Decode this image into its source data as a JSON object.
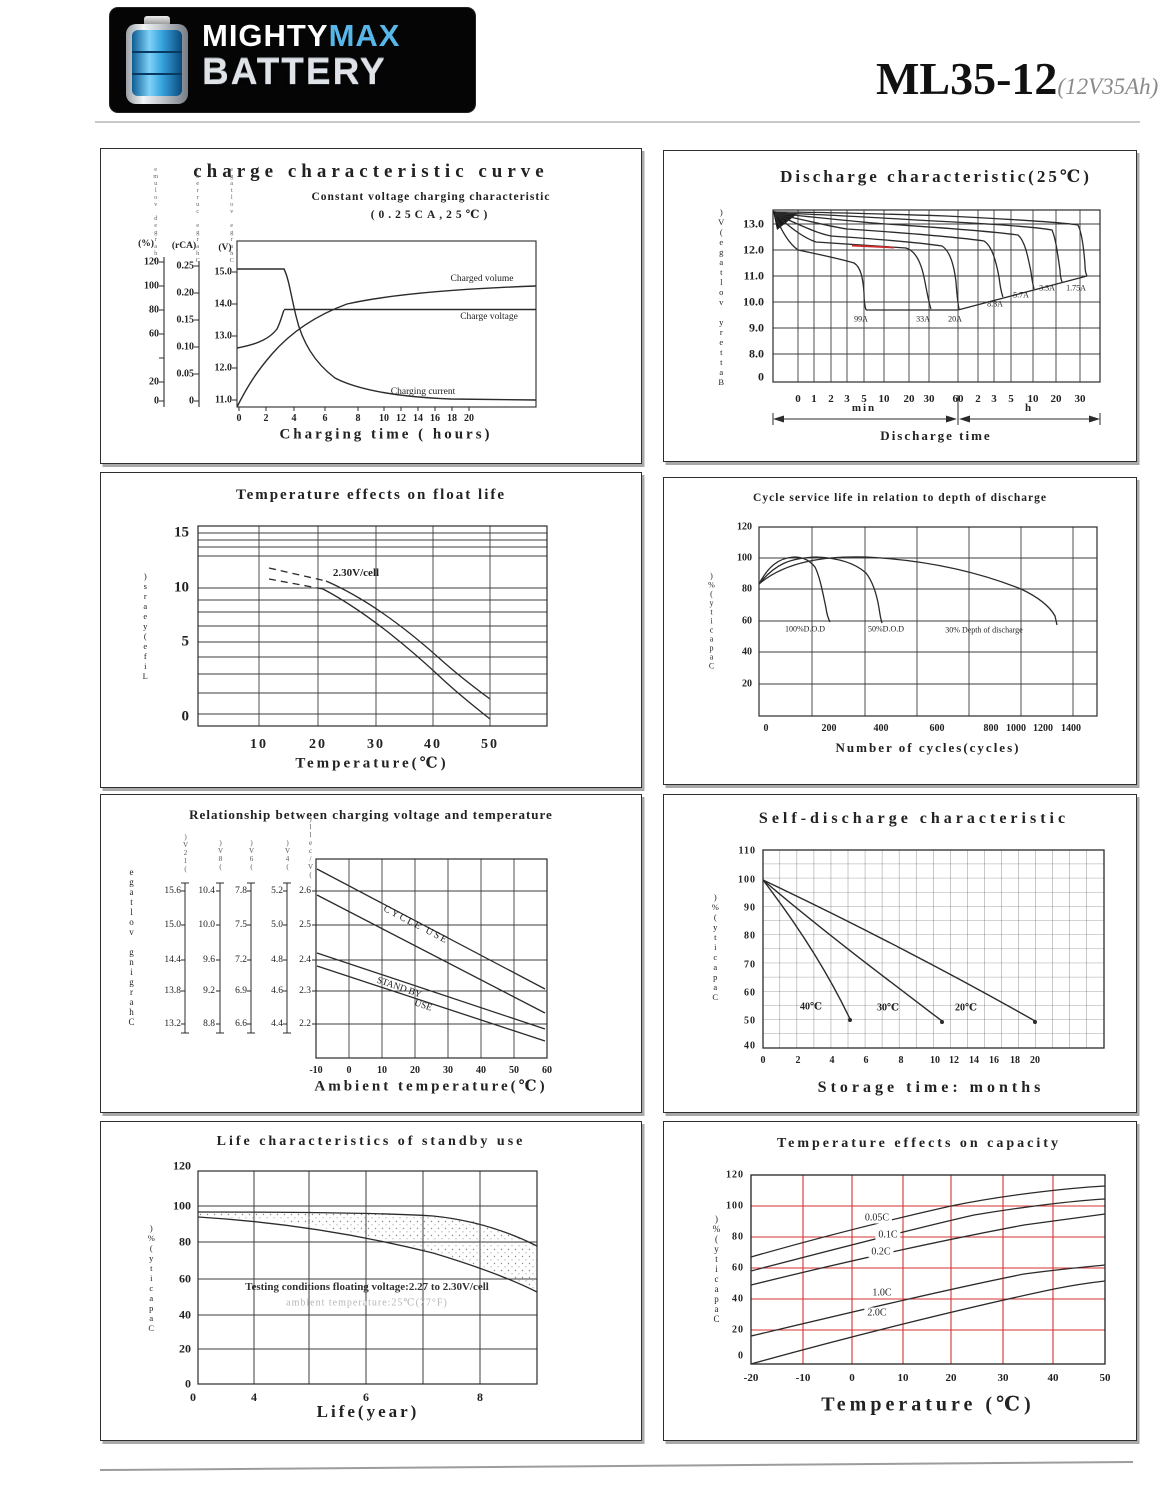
{
  "header": {
    "logo": {
      "line1_white": "MIGHTY",
      "line1_accent": "MAX",
      "line2": "BATTERY",
      "accent_color": "#56b7e8"
    },
    "model": "ML35-12",
    "spec": "(12V35Ah)"
  },
  "colors": {
    "ink": "#2b2b2b",
    "red_grid": "#d63333",
    "red_segment": "#cc2a2a",
    "logo_accent": "#56b7e8"
  },
  "chart_data": [
    {
      "id": "charge-characteristic",
      "type": "line",
      "title": "charge characteristic curve",
      "subtitle": "Constant voltage charging characteristic",
      "subtitle2": "(0.25CA,25℃)",
      "xlabel": "Charging time ( hours)",
      "x_ticks_a": [
        "0",
        "2",
        "4",
        "6",
        "8"
      ],
      "x_ticks_b": [
        "10",
        "12",
        "14",
        "16",
        "18",
        "20"
      ],
      "axes": [
        {
          "caption": "(%)",
          "title": "Charged volume",
          "ticks": [
            "120",
            "100",
            "80",
            "60",
            "",
            "20",
            "0"
          ],
          "range": [
            0,
            140
          ]
        },
        {
          "caption": "(rCA)",
          "title": "Charge current",
          "ticks": [
            "0.25",
            "0.20",
            "0.15",
            "0.10",
            "0.05",
            "0"
          ],
          "range": [
            0,
            0.3
          ]
        },
        {
          "caption": "(V)",
          "title": "Charge voltage",
          "ticks": [
            "15.0",
            "14.0",
            "13.0",
            "12.0",
            "11.0"
          ],
          "range": [
            10.5,
            15.5
          ]
        }
      ],
      "series": [
        {
          "name": "Charged volume",
          "unit": "%",
          "x_hours": [
            0,
            1,
            2,
            4,
            6,
            8,
            12,
            16,
            20,
            24
          ],
          "values": [
            0,
            20,
            42,
            68,
            83,
            92,
            100,
            104,
            106,
            107
          ]
        },
        {
          "name": "Charge voltage",
          "unit": "V",
          "x_hours": [
            0,
            1,
            2,
            3,
            4,
            8,
            16,
            24
          ],
          "values": [
            12.6,
            12.75,
            13.1,
            13.85,
            13.85,
            13.85,
            13.85,
            13.85
          ]
        },
        {
          "name": "Charging current",
          "unit": "CA",
          "x_hours": [
            0,
            2,
            2.8,
            4,
            6,
            8,
            12,
            20,
            24
          ],
          "values": [
            0.25,
            0.25,
            0.25,
            0.13,
            0.07,
            0.045,
            0.025,
            0.012,
            0.01
          ]
        }
      ]
    },
    {
      "id": "discharge-characteristic",
      "type": "line",
      "title": "Discharge  characteristic(25℃)",
      "ylabel": "Battery voltage(V)",
      "xlabel": "Discharge time",
      "unit_min": "min",
      "unit_h": "h",
      "y_ticks": [
        "13.0",
        "12.0",
        "11.0",
        "10.0",
        "9.0",
        "8.0",
        "0"
      ],
      "x_ticks": [
        "0",
        "1",
        "2",
        "3",
        "5",
        "10",
        "20",
        "30",
        "60",
        "2",
        "3",
        "5",
        "10",
        "20",
        "30"
      ],
      "series": [
        {
          "name": "99A",
          "points_min_V": [
            [
              0,
              12.4
            ],
            [
              2,
              12.1
            ],
            [
              4,
              11.6
            ],
            [
              6,
              9.6
            ]
          ]
        },
        {
          "name": "33A",
          "points_min_V": [
            [
              0,
              12.2
            ],
            [
              10,
              12.1
            ],
            [
              20,
              11.8
            ],
            [
              27,
              9.6
            ]
          ]
        },
        {
          "name": "20A",
          "points_min_V": [
            [
              0,
              12.4
            ],
            [
              20,
              12.3
            ],
            [
              40,
              11.4
            ],
            [
              50,
              9.6
            ]
          ]
        },
        {
          "name": "8.3A",
          "points_min_V": [
            [
              0,
              12.6
            ],
            [
              60,
              12.4
            ],
            [
              120,
              11.3
            ],
            [
              150,
              10.3
            ]
          ]
        },
        {
          "name": "5.7A",
          "points_min_V": [
            [
              0,
              12.7
            ],
            [
              120,
              12.4
            ],
            [
              200,
              11.2
            ],
            [
              240,
              10.5
            ]
          ]
        },
        {
          "name": "3.3A",
          "points_min_V": [
            [
              0,
              12.85
            ],
            [
              240,
              12.3
            ],
            [
              400,
              11.2
            ],
            [
              450,
              10.8
            ]
          ]
        },
        {
          "name": "1.75A",
          "points_min_V": [
            [
              0,
              13.0
            ],
            [
              600,
              12.2
            ],
            [
              900,
              11.3
            ],
            [
              960,
              11.0
            ]
          ]
        }
      ]
    },
    {
      "id": "temperature-effects-on-float-life",
      "type": "area",
      "title": "Temperature effects on float life",
      "xlabel": "Temperature(℃)",
      "ylabel": "Life(years)",
      "annotation": "2.30V/cell",
      "x_ticks": [
        "10",
        "20",
        "30",
        "40",
        "50"
      ],
      "y_ticks": [
        "15",
        "10",
        "5",
        "0"
      ],
      "series": [
        {
          "name": "float life upper",
          "x": [
            15,
            20,
            30,
            40,
            50
          ],
          "values": [
            11.8,
            11,
            7,
            3.5,
            1.3
          ]
        },
        {
          "name": "float life lower",
          "x": [
            15,
            20,
            30,
            40,
            50
          ],
          "values": [
            10.8,
            10,
            6,
            2.8,
            0.3
          ]
        }
      ]
    },
    {
      "id": "cycle-service-life",
      "type": "line",
      "title": "Cycle service life in relation to depth of discharge",
      "xlabel": "Number of cycles(cycles)",
      "ylabel": "Capacity(%)",
      "x_ticks": [
        "0",
        "200",
        "400",
        "600",
        "800",
        "1000",
        "1200",
        "1400"
      ],
      "y_ticks": [
        "120",
        "100",
        "80",
        "60",
        "40",
        "20"
      ],
      "series": [
        {
          "name": "100%D.O.D",
          "x": [
            0,
            50,
            100,
            150,
            180
          ],
          "values": [
            97,
            100,
            98,
            80,
            58
          ]
        },
        {
          "name": "50%D.O.D",
          "x": [
            0,
            100,
            200,
            300,
            400
          ],
          "values": [
            97,
            100,
            98,
            85,
            58
          ]
        },
        {
          "name": "30% Depth of discharge",
          "x": [
            0,
            200,
            400,
            600,
            800,
            1000,
            1250
          ],
          "values": [
            97,
            100,
            98,
            95,
            90,
            82,
            58
          ]
        }
      ]
    },
    {
      "id": "charging-voltage-vs-temperature",
      "type": "line",
      "title": "Relationship between charging voltage and temperature",
      "xlabel": "Ambient temperature(℃)",
      "ylabel": "Charging voltage",
      "x_ticks": [
        "-10",
        "0",
        "10",
        "20",
        "30",
        "40",
        "50",
        "60"
      ],
      "scales": [
        {
          "header": "(12V)",
          "ticks": [
            "15.6",
            "15.0",
            "14.4",
            "13.8",
            "13.2"
          ]
        },
        {
          "header": "(8V)",
          "ticks": [
            "10.4",
            "10.0",
            "9.6",
            "9.2",
            "8.8"
          ]
        },
        {
          "header": "(6V)",
          "ticks": [
            "7.8",
            "7.5",
            "7.2",
            "6.9",
            "6.6"
          ]
        },
        {
          "header": "(4V)",
          "ticks": [
            "5.2",
            "5.0",
            "4.8",
            "4.6",
            "4.4"
          ]
        },
        {
          "header": "(V/cell)",
          "ticks": [
            "2.6",
            "2.5",
            "2.4",
            "2.3",
            "2.2"
          ]
        }
      ],
      "labels": {
        "cycle": "CYCLE USE",
        "standby1": "STAND BY",
        "standby2": "USE"
      },
      "bands": [
        {
          "name": "CYCLE USE",
          "upper_Vpc": [
            [
              -10,
              2.58
            ],
            [
              60,
              2.3
            ]
          ],
          "lower_Vpc": [
            [
              -10,
              2.5
            ],
            [
              60,
              2.24
            ]
          ]
        },
        {
          "name": "STAND BY USE",
          "upper_Vpc": [
            [
              -10,
              2.4
            ],
            [
              60,
              2.19
            ]
          ],
          "lower_Vpc": [
            [
              -10,
              2.37
            ],
            [
              60,
              2.16
            ]
          ]
        }
      ]
    },
    {
      "id": "self-discharge",
      "type": "line",
      "title": "Self-discharge characteristic",
      "xlabel": "Storage time: months",
      "ylabel": "Capacity(%)",
      "x_ticks": [
        "0",
        "2",
        "4",
        "6",
        "8",
        "10",
        "12",
        "14",
        "16",
        "18",
        "20"
      ],
      "y_ticks": [
        "110",
        "100",
        "90",
        "80",
        "70",
        "60",
        "50",
        "40"
      ],
      "series": [
        {
          "name": "40℃",
          "x": [
            0,
            5
          ],
          "values": [
            100,
            49
          ]
        },
        {
          "name": "30℃",
          "x": [
            0,
            10.3
          ],
          "values": [
            100,
            49
          ]
        },
        {
          "name": "20℃",
          "x": [
            0,
            20
          ],
          "values": [
            100,
            49
          ]
        }
      ]
    },
    {
      "id": "life-standby-use",
      "type": "area",
      "title": "Life characteristics of standby use",
      "xlabel": "Life(year)",
      "ylabel": "Capacity(%)",
      "note1": "Testing conditions floating voltage:2.27 to 2.30V/cell",
      "note2": "ambient temperature:25℃(77°F)",
      "x_ticks": [
        "0",
        "4",
        "6",
        "8"
      ],
      "y_ticks": [
        "120",
        "100",
        "80",
        "60",
        "40",
        "20",
        "0"
      ],
      "series": [
        {
          "name": "upper",
          "x": [
            0,
            2,
            4,
            6,
            8,
            9
          ],
          "values": [
            96,
            96,
            95,
            93,
            86,
            80
          ]
        },
        {
          "name": "lower",
          "x": [
            0,
            2,
            4,
            6,
            8,
            9
          ],
          "values": [
            93,
            90,
            84,
            74,
            60,
            50
          ]
        }
      ]
    },
    {
      "id": "temperature-effects-on-capacity",
      "type": "line",
      "title": "Temperature effects on  capacity",
      "xlabel": "Temperature (℃)",
      "ylabel": "Capacity(%)",
      "grid_color": "#d63333",
      "x_ticks": [
        "-20",
        "-10",
        "0",
        "10",
        "20",
        "30",
        "40",
        "50"
      ],
      "y_ticks": [
        "120",
        "100",
        "80",
        "60",
        "40",
        "20",
        "0"
      ],
      "series": [
        {
          "name": "0.05C",
          "x": [
            -20,
            0,
            20,
            40,
            50
          ],
          "values": [
            67,
            85,
            100,
            110,
            112
          ]
        },
        {
          "name": "0.1C",
          "x": [
            -20,
            0,
            20,
            40,
            50
          ],
          "values": [
            58,
            77,
            96,
            102,
            104
          ]
        },
        {
          "name": "0.2C",
          "x": [
            -20,
            0,
            20,
            40,
            50
          ],
          "values": [
            49,
            67,
            86,
            92,
            94
          ]
        },
        {
          "name": "1.0C",
          "x": [
            -20,
            0,
            20,
            40,
            50
          ],
          "values": [
            16,
            33,
            47,
            57,
            61
          ]
        },
        {
          "name": "2.0C",
          "x": [
            -20,
            0,
            20,
            40,
            50
          ],
          "values": [
            -2,
            15,
            32,
            45,
            51
          ]
        }
      ]
    }
  ]
}
